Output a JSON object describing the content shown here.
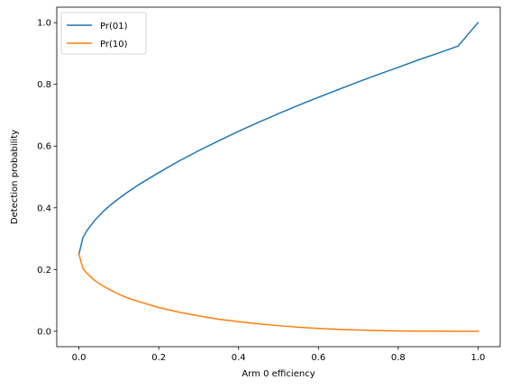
{
  "chart_data": {
    "type": "line",
    "title": "",
    "xlabel": "Arm 0 efficiency",
    "ylabel": "Detection probability",
    "xlim": [
      -0.0555,
      1.0555
    ],
    "ylim": [
      -0.05,
      1.05
    ],
    "xticks": [
      0.0,
      0.2,
      0.4,
      0.6,
      0.8,
      1.0
    ],
    "xtick_labels": [
      "0.0",
      "0.2",
      "0.4",
      "0.6",
      "0.8",
      "1.0"
    ],
    "yticks": [
      0.0,
      0.2,
      0.4,
      0.6,
      0.8,
      1.0
    ],
    "ytick_labels": [
      "0.0",
      "0.2",
      "0.4",
      "0.6",
      "0.8",
      "1.0"
    ],
    "grid": false,
    "legend_position": "upper left",
    "x": [
      0.0,
      0.01,
      0.02,
      0.04,
      0.06,
      0.08,
      0.1,
      0.12,
      0.15,
      0.2,
      0.25,
      0.3,
      0.35,
      0.4,
      0.45,
      0.5,
      0.55,
      0.6,
      0.65,
      0.7,
      0.75,
      0.8,
      0.85,
      0.9,
      0.95,
      1.0
    ],
    "series": [
      {
        "name": "Pr(01)",
        "color": "#1f77b4",
        "values": [
          0.25,
          0.303,
          0.326,
          0.36,
          0.387,
          0.41,
          0.43,
          0.449,
          0.475,
          0.514,
          0.551,
          0.585,
          0.617,
          0.648,
          0.677,
          0.705,
          0.732,
          0.758,
          0.783,
          0.808,
          0.832,
          0.855,
          0.879,
          0.901,
          0.924,
          1.0
        ]
      },
      {
        "name": "Pr(10)",
        "color": "#ff7f0e",
        "values": [
          0.25,
          0.203,
          0.188,
          0.164,
          0.147,
          0.133,
          0.12,
          0.109,
          0.096,
          0.077,
          0.062,
          0.05,
          0.039,
          0.031,
          0.024,
          0.018,
          0.013,
          0.009,
          0.006,
          0.004,
          0.002,
          0.001,
          0.0005,
          0.0002,
          0.0001,
          0.0
        ]
      }
    ]
  }
}
